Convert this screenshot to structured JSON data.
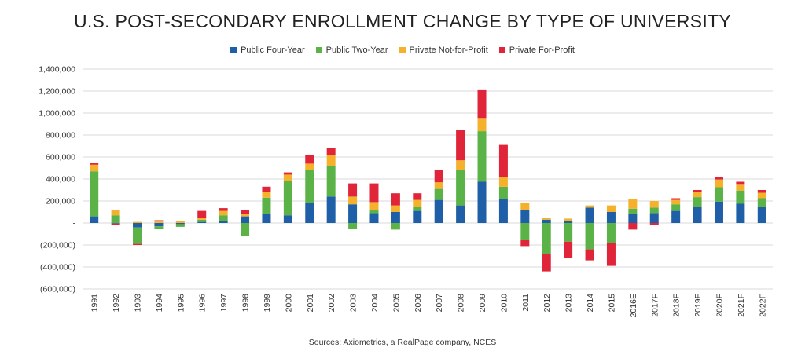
{
  "title": "U.S. POST-SECONDARY ENROLLMENT CHANGE BY TYPE OF UNIVERSITY",
  "source": "Sources: Axiometrics, a RealPage company, NCES",
  "chart_data": {
    "type": "bar",
    "stacked": true,
    "title": "U.S. POST-SECONDARY ENROLLMENT CHANGE BY TYPE OF UNIVERSITY",
    "xlabel": "",
    "ylabel": "",
    "ylim": [
      -600000,
      1400000
    ],
    "yticks": [
      1400000,
      1200000,
      1000000,
      800000,
      600000,
      400000,
      200000,
      0,
      -200000,
      -400000,
      -600000
    ],
    "ytick_labels": [
      "1,400,000",
      "1,200,000",
      "1,000,000",
      "800,000",
      "600,000",
      "400,000",
      "200,000",
      "-",
      "(200,000)",
      "(400,000)",
      "(600,000)"
    ],
    "grid": true,
    "legend_position": "top",
    "categories": [
      "1991",
      "1992",
      "1993",
      "1994",
      "1995",
      "1996",
      "1997",
      "1998",
      "1999",
      "2000",
      "2001",
      "2002",
      "2003",
      "2004",
      "2005",
      "2006",
      "2007",
      "2008",
      "2009",
      "2010",
      "2011",
      "2012",
      "2013",
      "2014",
      "2015",
      "2016E",
      "2017F",
      "2018F",
      "2019F",
      "2020F",
      "2021F",
      "2022F"
    ],
    "series": [
      {
        "name": "Public Four-Year",
        "color": "#1f5fa8",
        "values": [
          60000,
          -5000,
          -40000,
          -30000,
          -10000,
          10000,
          20000,
          60000,
          80000,
          70000,
          180000,
          240000,
          170000,
          90000,
          100000,
          110000,
          210000,
          160000,
          375000,
          220000,
          120000,
          30000,
          20000,
          140000,
          100000,
          80000,
          90000,
          110000,
          145000,
          195000,
          175000,
          145000
        ]
      },
      {
        "name": "Public Two-Year",
        "color": "#5bb347",
        "values": [
          410000,
          70000,
          -150000,
          -20000,
          -25000,
          20000,
          50000,
          -120000,
          150000,
          310000,
          300000,
          280000,
          -50000,
          30000,
          -60000,
          40000,
          100000,
          320000,
          460000,
          110000,
          -150000,
          -280000,
          -170000,
          -240000,
          -180000,
          50000,
          50000,
          60000,
          90000,
          130000,
          120000,
          80000
        ]
      },
      {
        "name": "Private Not-for-Profit",
        "color": "#f5b12c",
        "values": [
          60000,
          50000,
          10000,
          15000,
          15000,
          20000,
          40000,
          20000,
          50000,
          60000,
          60000,
          100000,
          70000,
          70000,
          60000,
          60000,
          60000,
          90000,
          120000,
          90000,
          60000,
          20000,
          20000,
          20000,
          60000,
          90000,
          60000,
          40000,
          50000,
          70000,
          60000,
          50000
        ]
      },
      {
        "name": "Private For-Profit",
        "color": "#e0243a",
        "values": [
          20000,
          -10000,
          -10000,
          10000,
          5000,
          60000,
          25000,
          40000,
          50000,
          20000,
          80000,
          60000,
          120000,
          170000,
          110000,
          60000,
          110000,
          280000,
          260000,
          290000,
          -60000,
          -160000,
          -150000,
          -100000,
          -210000,
          -60000,
          -20000,
          15000,
          15000,
          25000,
          20000,
          25000
        ]
      }
    ]
  }
}
